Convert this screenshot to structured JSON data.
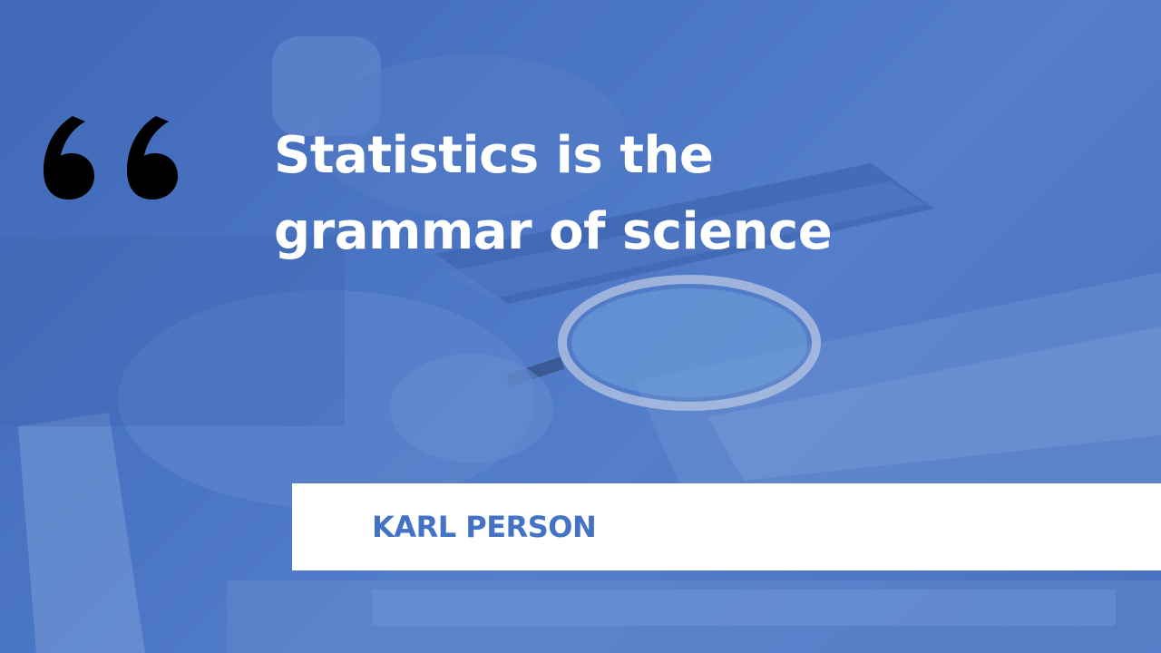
{
  "slide": {
    "quote_line_1": "Statistics is the",
    "quote_line_2": "grammar of science",
    "author": "KARL PERSON"
  },
  "background": {
    "description_icon": "hands-magnifying-glass-calculator-photo",
    "overlay_color": "#4472c4"
  },
  "colors": {
    "quote_text": "#ffffff",
    "quote_mark": "#000000",
    "author_text": "#4472c4",
    "author_bar": "#ffffff"
  },
  "icons": {
    "quote_mark": "opening-quote-icon"
  }
}
